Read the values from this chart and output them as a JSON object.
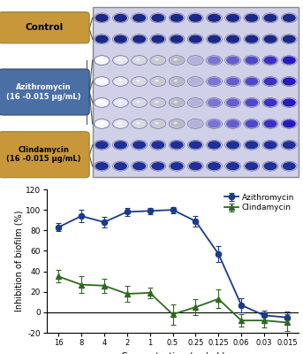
{
  "concentrations": [
    16,
    8,
    4,
    2,
    1,
    0.5,
    0.25,
    0.125,
    0.06,
    0.03,
    0.015
  ],
  "azithromycin_values": [
    83,
    94,
    88,
    98,
    99,
    100,
    89,
    57,
    7,
    -3,
    -5
  ],
  "azithromycin_errors": [
    4,
    6,
    5,
    4,
    3,
    3,
    5,
    8,
    7,
    5,
    6
  ],
  "clindamycin_values": [
    35,
    27,
    26,
    18,
    19,
    -2,
    5,
    13,
    -8,
    -8,
    -10
  ],
  "clindamycin_errors": [
    6,
    8,
    7,
    8,
    5,
    10,
    8,
    9,
    6,
    7,
    8
  ],
  "xlabel": "Concentration (μg/mL)",
  "ylabel": "Inhibition of biofilm (%)",
  "ylim": [
    -20,
    120
  ],
  "yticks": [
    -20,
    0,
    20,
    40,
    60,
    80,
    100,
    120
  ],
  "azithromycin_color": "#1a3a8a",
  "clindamycin_color": "#2d6a1f",
  "legend_azithromycin": "Azithromycin",
  "legend_clindamycin": "Clindamycin",
  "control_label": "Control",
  "azithromycin_label": "Azithromycin\n(16 -0.015 μg/mL)",
  "clindamycin_label": "Clindamycin\n(16 -0.015 μg/mL)",
  "control_color": "#c8973a",
  "azithromycin_box_color": "#4a6fa5",
  "clindamycin_box_color": "#c8973a",
  "plate_bg": "#e8e8f0",
  "rows": 8,
  "cols": 11,
  "x_labels": [
    "16",
    "8",
    "4",
    "2",
    "1",
    "0.5",
    "0.25",
    "0.125",
    "0.06",
    "0.03",
    "0.015"
  ]
}
